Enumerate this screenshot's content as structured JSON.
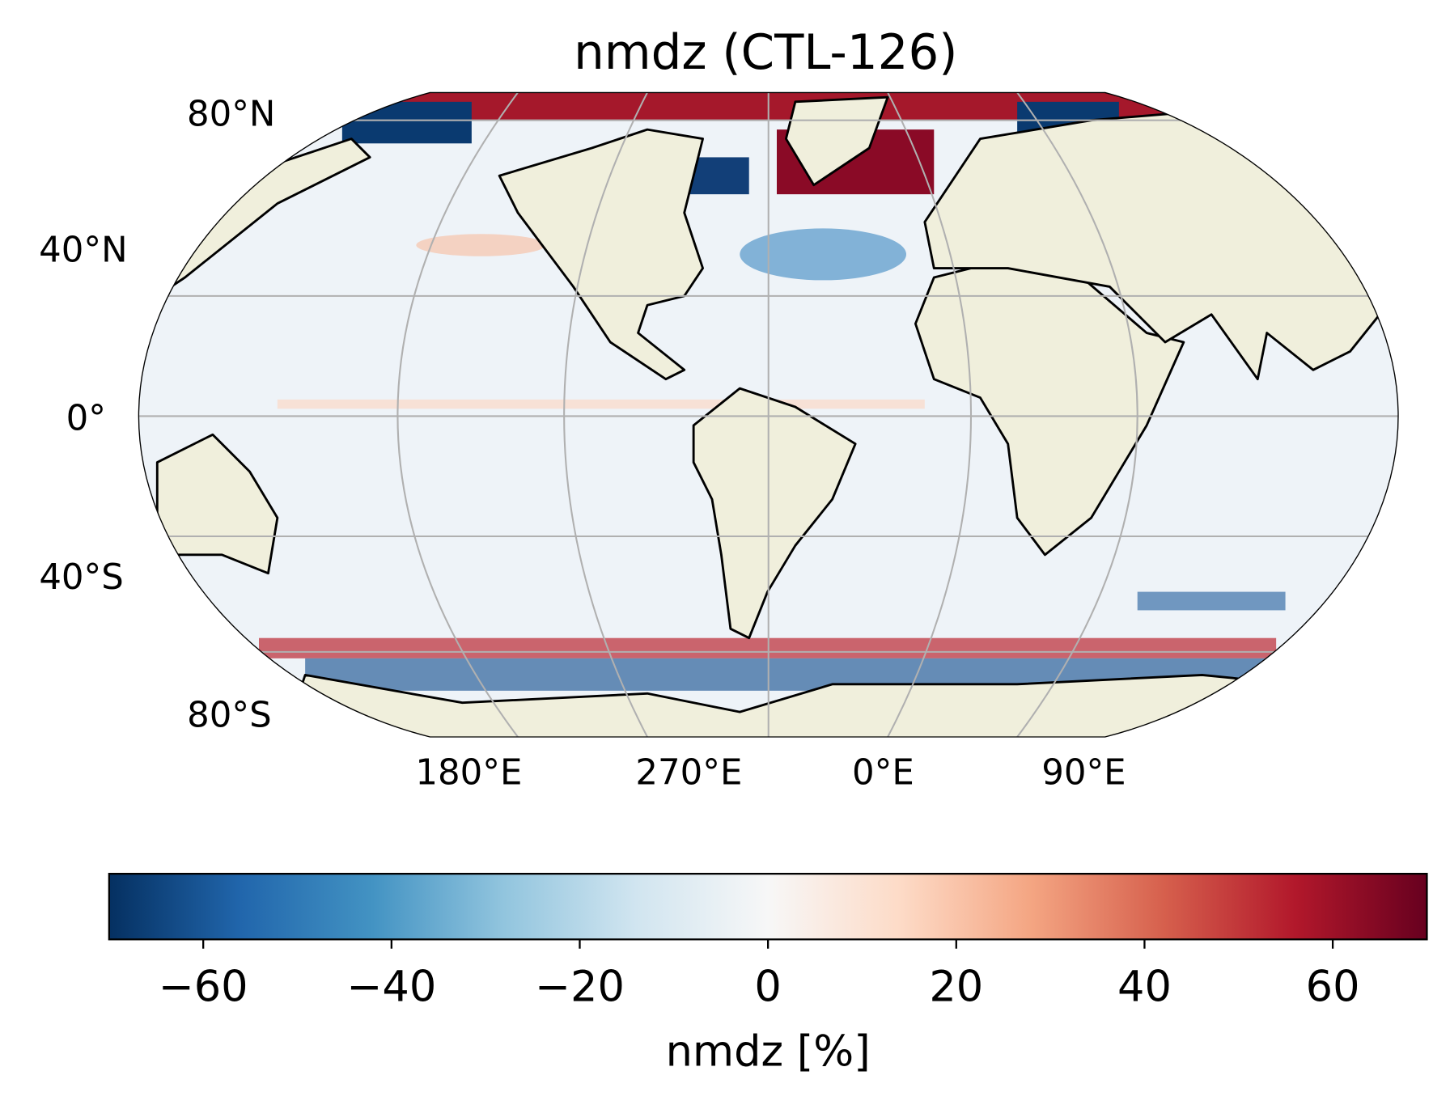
{
  "title": "nmdz (CTL-126)",
  "lat_labels": [
    "80°N",
    "40°N",
    "0°",
    "40°S",
    "80°S"
  ],
  "lon_labels": [
    "180°E",
    "270°E",
    "0°E",
    "90°E"
  ],
  "colorbar": {
    "label": "nmdz [%]",
    "lim": [
      -70,
      70
    ],
    "ticks": [
      {
        "value": -60,
        "label": "−60"
      },
      {
        "value": -40,
        "label": "−40"
      },
      {
        "value": -20,
        "label": "−20"
      },
      0,
      20,
      40,
      60
    ]
  }
}
